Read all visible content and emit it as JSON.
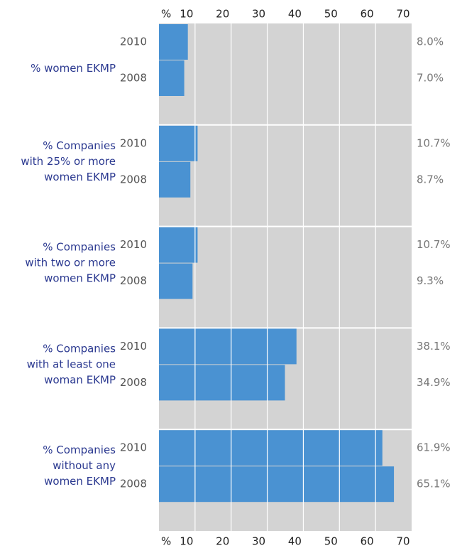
{
  "chart_data": {
    "type": "bar",
    "orientation": "horizontal",
    "categories": [
      [
        "% women EKMP"
      ],
      [
        "% Companies",
        "with 25% or more",
        "women EKMP"
      ],
      [
        "% Companies",
        "with two or more",
        "women EKMP"
      ],
      [
        "% Companies",
        "with at least one",
        "woman EKMP"
      ],
      [
        "% Companies",
        "without any",
        "women EKMP"
      ]
    ],
    "series": [
      {
        "name": "2010",
        "color": "#4a92d2",
        "values": [
          8.0,
          10.7,
          10.7,
          38.1,
          61.9
        ],
        "value_labels": [
          "8.0%",
          "10.7%",
          "10.7%",
          "38.1%",
          "61.9%"
        ]
      },
      {
        "name": "2008",
        "color": "#4a92d2",
        "values": [
          7.0,
          8.7,
          9.3,
          34.9,
          65.1
        ],
        "value_labels": [
          "7.0%",
          "8.7%",
          "9.3%",
          "34.9%",
          "65.1%"
        ]
      }
    ],
    "xlim": [
      0,
      70
    ],
    "xticks": [
      {
        "value": 0,
        "label": "%"
      },
      10,
      20,
      30,
      40,
      50,
      60,
      70
    ],
    "grid": true,
    "background": "#d3d3d3"
  }
}
